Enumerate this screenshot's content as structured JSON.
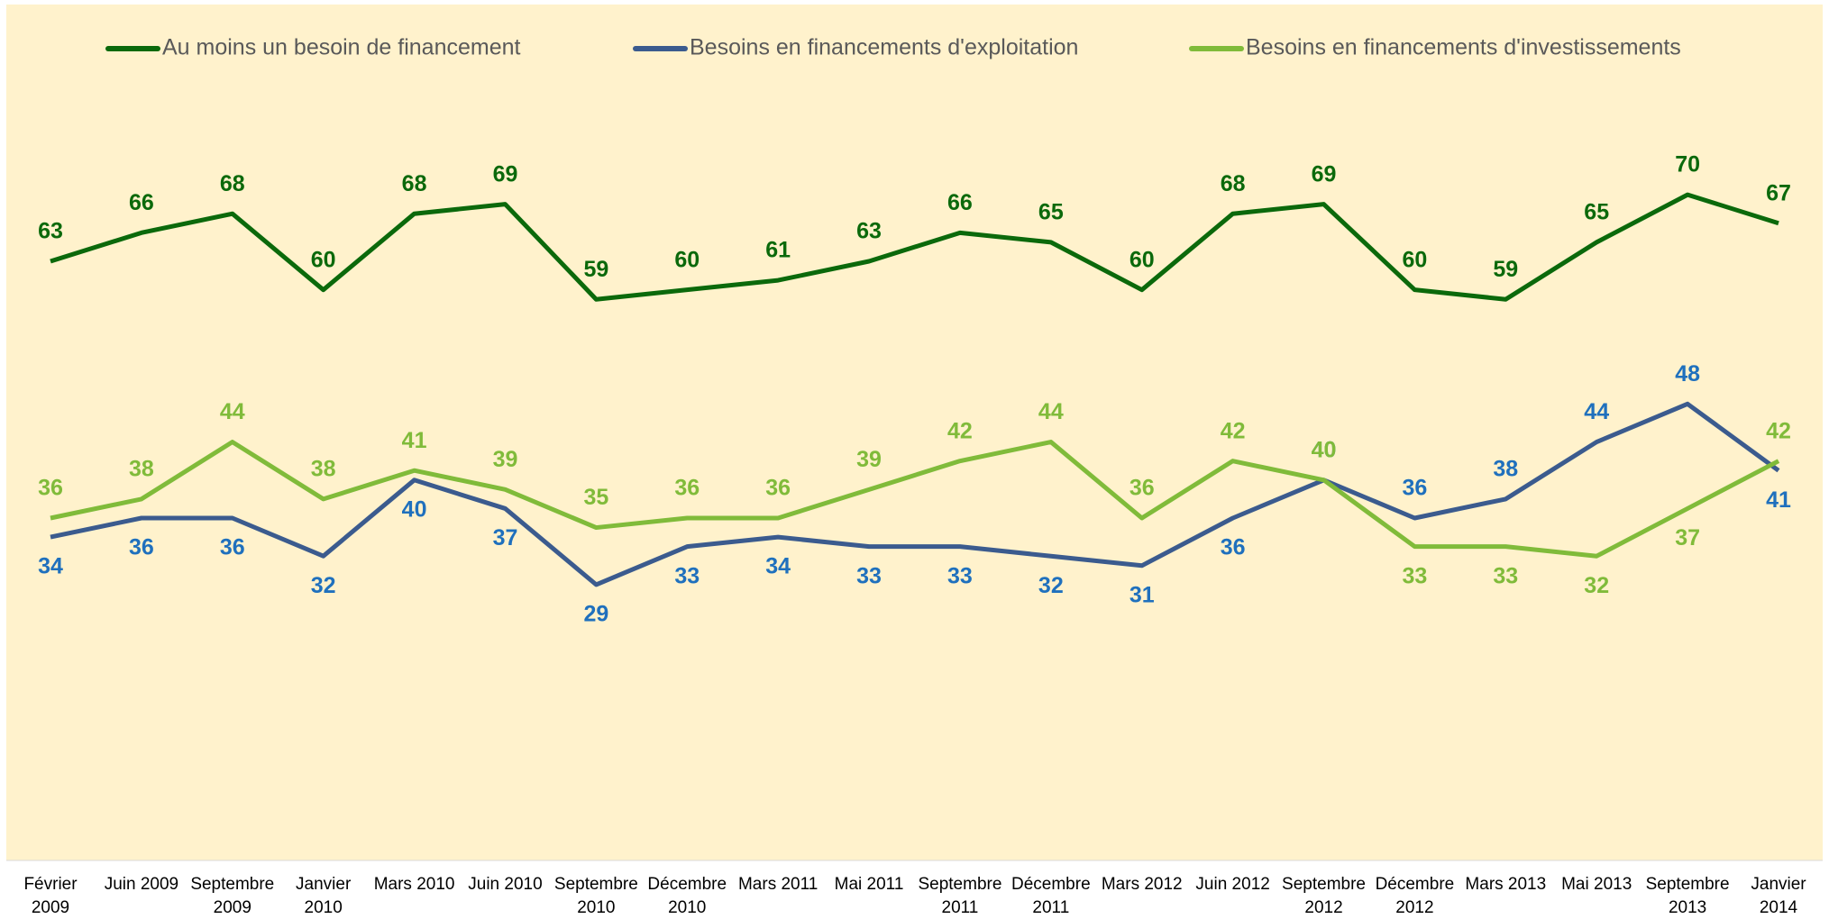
{
  "chart_data": {
    "type": "line",
    "categories": [
      "Février 2009",
      "Juin 2009",
      "Septembre 2009",
      "Janvier 2010",
      "Mars 2010",
      "Juin 2010",
      "Septembre 2010",
      "Décembre 2010",
      "Mars 2011",
      "Mai 2011",
      "Septembre 2011",
      "Décembre 2011",
      "Mars 2012",
      "Juin 2012",
      "Septembre 2012",
      "Décembre 2012",
      "Mars 2013",
      "Mai 2013",
      "Septembre 2013",
      "Janvier 2014"
    ],
    "series": [
      {
        "name": "Au moins un besoin de financement",
        "color": "#0b690b",
        "label_color": "#0b690b",
        "values": [
          63,
          66,
          68,
          60,
          68,
          69,
          59,
          60,
          61,
          63,
          66,
          65,
          60,
          68,
          69,
          60,
          59,
          65,
          70,
          67
        ]
      },
      {
        "name": "Besoins en financements d'exploitation",
        "color": "#3b5b8e",
        "label_color": "#1f70bd",
        "values": [
          34,
          36,
          36,
          32,
          40,
          37,
          29,
          33,
          34,
          33,
          33,
          32,
          31,
          36,
          40,
          36,
          38,
          44,
          48,
          41
        ]
      },
      {
        "name": "Besoins en financements d'investissements",
        "color": "#80bb3a",
        "label_color": "#80bb3a",
        "values": [
          36,
          38,
          44,
          38,
          41,
          39,
          35,
          36,
          36,
          39,
          42,
          44,
          36,
          42,
          40,
          33,
          33,
          32,
          37,
          42
        ]
      }
    ],
    "ylim": [
      0,
      90
    ],
    "legend": "top",
    "background": "#fff2cc"
  }
}
